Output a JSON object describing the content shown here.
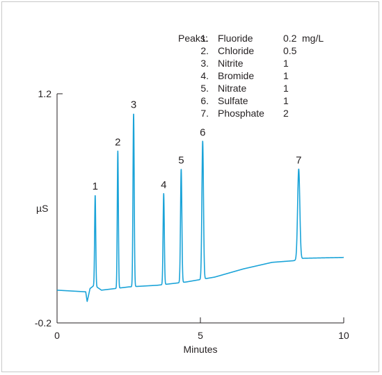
{
  "chart_data": {
    "type": "line",
    "xlabel": "Minutes",
    "ylabel": "µS",
    "xlim": [
      0,
      10
    ],
    "ylim": [
      -0.2,
      1.2
    ],
    "x_ticks": [
      "0",
      "5",
      "10"
    ],
    "y_ticks": [
      "-0.2",
      "1.2"
    ],
    "line_color": "#1aa3d8",
    "baseline": [
      {
        "x": 0.0,
        "y": 0.0
      },
      {
        "x": 1.0,
        "y": -0.01
      },
      {
        "x": 1.05,
        "y": -0.07
      },
      {
        "x": 1.15,
        "y": 0.01
      },
      {
        "x": 1.3,
        "y": 0.03
      },
      {
        "x": 1.55,
        "y": 0.0
      },
      {
        "x": 2.5,
        "y": 0.02
      },
      {
        "x": 3.5,
        "y": 0.03
      },
      {
        "x": 4.5,
        "y": 0.05
      },
      {
        "x": 5.5,
        "y": 0.08
      },
      {
        "x": 6.5,
        "y": 0.13
      },
      {
        "x": 7.5,
        "y": 0.17
      },
      {
        "x": 8.25,
        "y": 0.18
      },
      {
        "x": 8.6,
        "y": 0.195
      },
      {
        "x": 10.0,
        "y": 0.2
      }
    ],
    "peaks": [
      {
        "label": "1",
        "name": "Fluoride",
        "conc": "0.2",
        "unit": "mg/L",
        "x": 1.33,
        "y": 0.58,
        "width": 0.045
      },
      {
        "label": "2",
        "name": "Chloride",
        "conc": "0.5",
        "unit": "",
        "x": 2.12,
        "y": 0.85,
        "width": 0.045
      },
      {
        "label": "3",
        "name": "Nitrite",
        "conc": "1",
        "unit": "",
        "x": 2.67,
        "y": 1.08,
        "width": 0.05
      },
      {
        "label": "4",
        "name": "Bromide",
        "conc": "1",
        "unit": "",
        "x": 3.72,
        "y": 0.59,
        "width": 0.05
      },
      {
        "label": "5",
        "name": "Nitrate",
        "conc": "1",
        "unit": "",
        "x": 4.33,
        "y": 0.74,
        "width": 0.055
      },
      {
        "label": "6",
        "name": "Sulfate",
        "conc": "1",
        "unit": "",
        "x": 5.08,
        "y": 0.91,
        "width": 0.065
      },
      {
        "label": "7",
        "name": "Phosphate",
        "conc": "2",
        "unit": "",
        "x": 8.43,
        "y": 0.74,
        "width": 0.09
      }
    ],
    "legend": {
      "heading": "Peaks:",
      "items": [
        {
          "num": "1.",
          "name": "Fluoride",
          "conc": "0.2",
          "unit": "mg/L"
        },
        {
          "num": "2.",
          "name": "Chloride",
          "conc": "0.5",
          "unit": ""
        },
        {
          "num": "3.",
          "name": "Nitrite",
          "conc": "1",
          "unit": ""
        },
        {
          "num": "4.",
          "name": "Bromide",
          "conc": "1",
          "unit": ""
        },
        {
          "num": "5.",
          "name": "Nitrate",
          "conc": "1",
          "unit": ""
        },
        {
          "num": "6.",
          "name": "Sulfate",
          "conc": "1",
          "unit": ""
        },
        {
          "num": "7.",
          "name": "Phosphate",
          "conc": "2",
          "unit": ""
        }
      ],
      "placement": "top-right"
    },
    "grid": false
  }
}
